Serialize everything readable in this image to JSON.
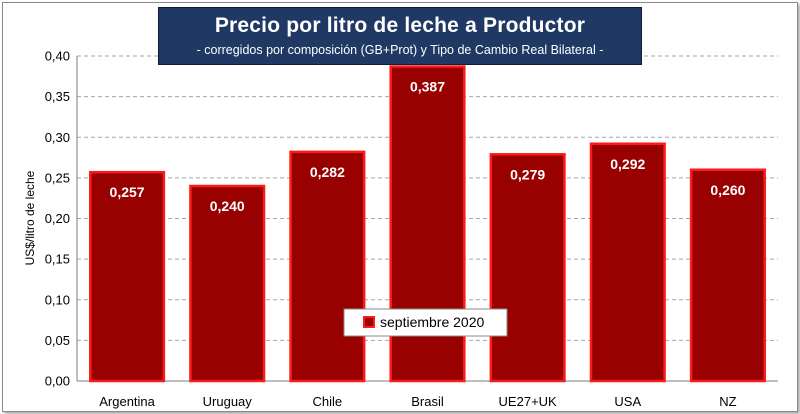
{
  "title": "Precio por litro de leche a Productor",
  "subtitle": "-  corregidos por composición (GB+Prot) y Tipo de Cambio Real Bilateral -",
  "chart_data": {
    "type": "bar",
    "title": "Precio por litro de leche a Productor",
    "subtitle": "-  corregidos por composición (GB+Prot) y Tipo de Cambio Real Bilateral -",
    "ylabel": "US$/litro de leche",
    "xlabel": "",
    "ylim": [
      0,
      0.4
    ],
    "ytick_step": 0.05,
    "yticks": [
      "0,00",
      "0,05",
      "0,10",
      "0,15",
      "0,20",
      "0,25",
      "0,30",
      "0,35",
      "0,40"
    ],
    "categories": [
      "Argentina",
      "Uruguay",
      "Chile",
      "Brasil",
      "UE27+UK",
      "USA",
      "NZ"
    ],
    "series": [
      {
        "name": "septiembre 2020",
        "values": [
          0.257,
          0.24,
          0.282,
          0.387,
          0.279,
          0.292,
          0.26
        ],
        "labels": [
          "0,257",
          "0,240",
          "0,282",
          "0,387",
          "0,279",
          "0,292",
          "0,260"
        ]
      }
    ],
    "grid": true,
    "legend_position": "bottom-center",
    "colors": {
      "bar_fill": "#990000",
      "bar_edge": "#ff1a1a",
      "grid": "#a6a6a6",
      "title_bg": "#1f3864"
    }
  }
}
